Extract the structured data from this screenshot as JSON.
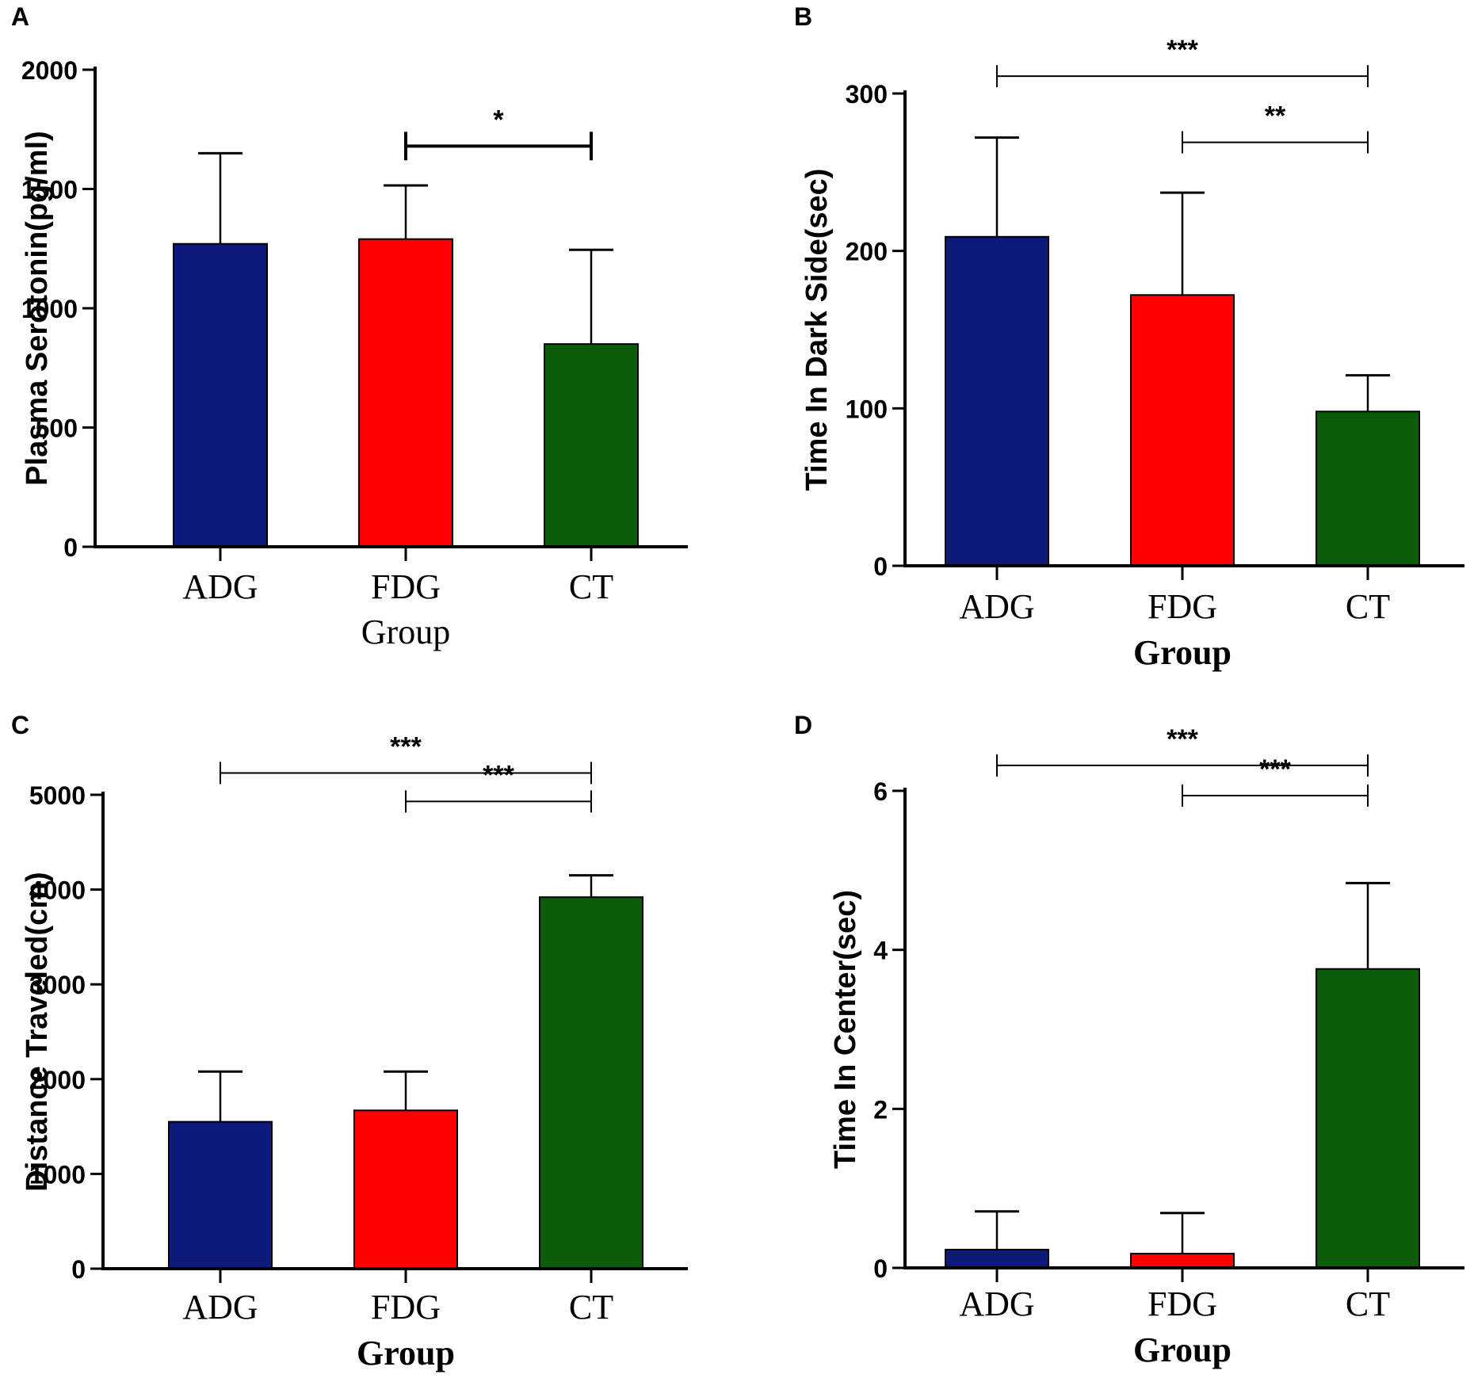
{
  "colors": {
    "ADG": "#0d1a7a",
    "FDG": "#ff0000",
    "CT": "#0b5b0b",
    "axis": "#000000"
  },
  "chart_data": [
    {
      "panel": "A",
      "type": "bar",
      "categories": [
        "ADG",
        "FDG",
        "CT"
      ],
      "values": [
        1270,
        1290,
        850
      ],
      "errors_upper": [
        1650,
        1515,
        1245
      ],
      "ylim": [
        0,
        2000
      ],
      "yticks": [
        "0",
        "500",
        "1000",
        "1500",
        "2000"
      ],
      "ylabel": "Plasma Serotonin(pg/ml)",
      "xlabel": "Group",
      "xlabel_bold": false,
      "significance": [
        {
          "from": "FDG",
          "to": "CT",
          "label": "*",
          "y": 1680,
          "thick": true
        }
      ]
    },
    {
      "panel": "B",
      "type": "bar",
      "categories": [
        "ADG",
        "FDG",
        "CT"
      ],
      "values": [
        209,
        172,
        98
      ],
      "errors_upper": [
        272,
        237,
        121
      ],
      "ylim": [
        0,
        300
      ],
      "yticks": [
        "0",
        "100",
        "200",
        "300"
      ],
      "ylabel": "Time In Dark Side(sec)",
      "xlabel": "Group",
      "xlabel_bold": true,
      "significance": [
        {
          "from": "ADG",
          "to": "CT",
          "label": "***",
          "y": 311,
          "thick": false
        },
        {
          "from": "FDG",
          "to": "CT",
          "label": "**",
          "y": 269,
          "thick": false
        }
      ]
    },
    {
      "panel": "C",
      "type": "bar",
      "categories": [
        "ADG",
        "FDG",
        "CT"
      ],
      "values": [
        1550,
        1670,
        3920
      ],
      "errors_upper": [
        2080,
        2080,
        4150
      ],
      "ylim": [
        0,
        5000
      ],
      "yticks": [
        "0",
        "1000",
        "2000",
        "3000",
        "4000",
        "5000"
      ],
      "ylabel": "Distance Traveled(cm)",
      "xlabel": "Group",
      "xlabel_bold": true,
      "significance": [
        {
          "from": "ADG",
          "to": "CT",
          "label": "***",
          "y": 5230,
          "thick": false
        },
        {
          "from": "FDG",
          "to": "CT",
          "label": "***",
          "y": 4930,
          "thick": false
        }
      ]
    },
    {
      "panel": "D",
      "type": "bar",
      "categories": [
        "ADG",
        "FDG",
        "CT"
      ],
      "values": [
        0.23,
        0.18,
        3.76
      ],
      "errors_upper": [
        0.71,
        0.69,
        4.84
      ],
      "ylim": [
        0,
        6
      ],
      "yticks": [
        "0",
        "2",
        "4",
        "6"
      ],
      "ylabel": "Time In Center(sec)",
      "xlabel": "Group",
      "xlabel_bold": true,
      "significance": [
        {
          "from": "ADG",
          "to": "CT",
          "label": "***",
          "y": 6.32,
          "thick": false
        },
        {
          "from": "FDG",
          "to": "CT",
          "label": "***",
          "y": 5.94,
          "thick": false
        }
      ]
    }
  ]
}
